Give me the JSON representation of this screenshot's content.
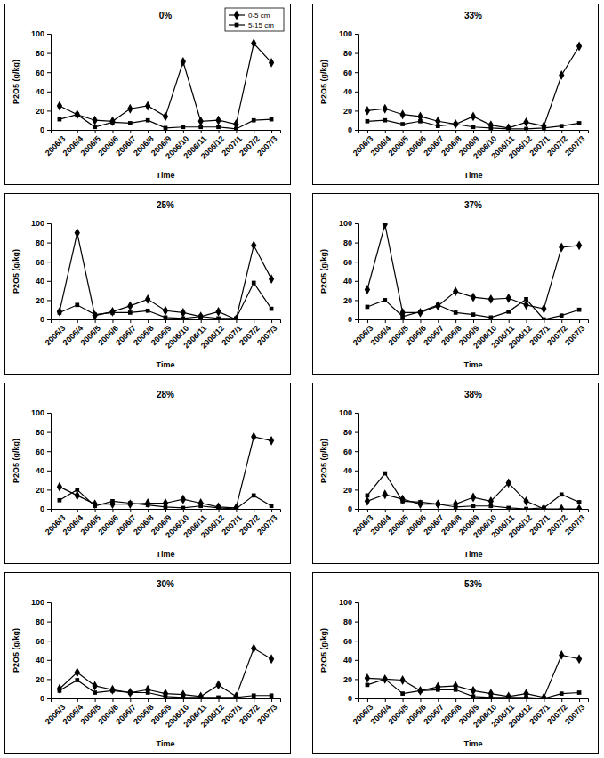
{
  "chart_data": [
    {
      "type": "line",
      "title": "0%",
      "x_label": "Time",
      "y_label": "P2O5 (g/kg)",
      "legend": "upper right",
      "categories": [
        "2006/3",
        "2006/4",
        "2006/5",
        "2006/6",
        "2006/7",
        "2006/8",
        "2006/9",
        "2006/10",
        "2006/11",
        "2006/12",
        "2007/1",
        "2007/2",
        "2007/3"
      ],
      "ylim": [
        0,
        100
      ],
      "yticks": [
        0,
        20,
        40,
        60,
        80,
        100
      ],
      "series": [
        {
          "name": "0-5 cm",
          "color": "#000000",
          "marker": "diamond",
          "values": [
            25,
            16,
            10,
            9,
            22,
            25,
            14,
            71,
            9,
            10,
            6,
            90,
            70
          ]
        },
        {
          "name": "5-15 cm",
          "color": "#000000",
          "marker": "square",
          "values": [
            11,
            16,
            3,
            8,
            7,
            10,
            2,
            3,
            3,
            3,
            1,
            10,
            11
          ]
        }
      ]
    },
    {
      "type": "line",
      "title": "25%",
      "x_label": "Time",
      "y_label": "P2O5 (g/kg)",
      "categories": [
        "2006/3",
        "2006/4",
        "2006/5",
        "2006/6",
        "2006/7",
        "2006/8",
        "2006/9",
        "2006/10",
        "2006/11",
        "2006/12",
        "2007/1",
        "2007/2",
        "2007/3"
      ],
      "ylim": [
        0,
        100
      ],
      "yticks": [
        0,
        20,
        40,
        60,
        80,
        100
      ],
      "series": [
        {
          "color": "#000000",
          "marker": "diamond",
          "values": [
            8,
            90,
            4,
            8,
            14,
            21,
            9,
            7,
            3,
            8,
            0,
            77,
            42
          ]
        },
        {
          "color": "#000000",
          "marker": "square",
          "values": [
            7,
            15,
            5,
            7,
            7,
            9,
            2,
            1,
            3,
            1,
            1,
            38,
            11
          ]
        }
      ]
    },
    {
      "type": "line",
      "title": "28%",
      "x_label": "Time",
      "y_label": "P2O5 (g/kg)",
      "categories": [
        "2006/3",
        "2006/4",
        "2006/5",
        "2006/6",
        "2006/7",
        "2006/8",
        "2006/9",
        "2006/10",
        "2006/11",
        "2006/12",
        "2007/1",
        "2007/2",
        "2007/3"
      ],
      "ylim": [
        0,
        100
      ],
      "yticks": [
        0,
        20,
        40,
        60,
        80,
        100
      ],
      "series": [
        {
          "color": "#000000",
          "marker": "diamond",
          "values": [
            23,
            14,
            5,
            5,
            5,
            6,
            6,
            10,
            6,
            2,
            1,
            75,
            71
          ]
        },
        {
          "color": "#000000",
          "marker": "square",
          "values": [
            9,
            20,
            3,
            8,
            6,
            4,
            2,
            1,
            3,
            1,
            0,
            14,
            3
          ]
        }
      ]
    },
    {
      "type": "line",
      "title": "30%",
      "x_label": "Time",
      "y_label": "P2O5 (g/kg)",
      "categories": [
        "2006/3",
        "2006/4",
        "2006/5",
        "2006/6",
        "2006/7",
        "2006/8",
        "2006/9",
        "2006/10",
        "2006/11",
        "2006/12",
        "2007/1",
        "2007/2",
        "2007/3"
      ],
      "ylim": [
        0,
        100
      ],
      "yticks": [
        0,
        20,
        40,
        60,
        80,
        100
      ],
      "series": [
        {
          "color": "#000000",
          "marker": "diamond",
          "values": [
            10,
            27,
            13,
            9,
            6,
            9,
            5,
            4,
            2,
            14,
            2,
            52,
            41
          ]
        },
        {
          "color": "#000000",
          "marker": "square",
          "values": [
            8,
            19,
            6,
            8,
            6,
            6,
            2,
            1,
            1,
            1,
            1,
            3,
            3
          ]
        }
      ]
    },
    {
      "type": "line",
      "title": "33%",
      "x_label": "Time",
      "y_label": "P2O5 (g/kg)",
      "categories": [
        "2006/3",
        "2006/4",
        "2006/5",
        "2006/6",
        "2006/7",
        "2006/8",
        "2006/9",
        "2006/10",
        "2006/11",
        "2006/12",
        "2007/1",
        "2007/2",
        "2007/3"
      ],
      "ylim": [
        0,
        100
      ],
      "yticks": [
        0,
        20,
        40,
        60,
        80,
        100
      ],
      "series": [
        {
          "color": "#000000",
          "marker": "diamond",
          "values": [
            20,
            22,
            16,
            14,
            9,
            6,
            14,
            5,
            2,
            8,
            4,
            57,
            87
          ]
        },
        {
          "color": "#000000",
          "marker": "square",
          "values": [
            9,
            10,
            6,
            9,
            4,
            6,
            3,
            2,
            1,
            1,
            2,
            4,
            7
          ]
        }
      ]
    },
    {
      "type": "line",
      "title": "37%",
      "x_label": "Time",
      "y_label": "P2O5 (g/kg)",
      "categories": [
        "2006/3",
        "2006/4",
        "2006/5",
        "2006/6",
        "2006/7",
        "2006/8",
        "2006/9",
        "2006/10",
        "2006/11",
        "2006/12",
        "2007/1",
        "2007/2",
        "2007/3"
      ],
      "ylim": [
        0,
        100
      ],
      "yticks": [
        0,
        20,
        40,
        60,
        80,
        100
      ],
      "series": [
        {
          "color": "#000000",
          "marker": "diamond",
          "values": [
            31,
            99,
            7,
            7,
            14,
            29,
            23,
            21,
            22,
            15,
            11,
            75,
            77
          ]
        },
        {
          "color": "#000000",
          "marker": "square",
          "values": [
            13,
            20,
            3,
            8,
            15,
            7,
            5,
            2,
            8,
            21,
            0,
            4,
            10
          ]
        }
      ]
    },
    {
      "type": "line",
      "title": "38%",
      "x_label": "Time",
      "y_label": "P2O5 (g/kg)",
      "categories": [
        "2006/3",
        "2006/4",
        "2006/5",
        "2006/6",
        "2006/7",
        "2006/8",
        "2006/9",
        "2006/10",
        "2006/11",
        "2006/12",
        "2007/1",
        "2007/2",
        "2007/3"
      ],
      "ylim": [
        0,
        100
      ],
      "yticks": [
        0,
        20,
        40,
        60,
        80,
        100
      ],
      "series": [
        {
          "color": "#000000",
          "marker": "diamond",
          "values": [
            8,
            15,
            10,
            5,
            5,
            5,
            12,
            8,
            27,
            8,
            0,
            0,
            0
          ]
        },
        {
          "color": "#000000",
          "marker": "square",
          "values": [
            14,
            37,
            8,
            7,
            5,
            2,
            3,
            3,
            1,
            0,
            1,
            15,
            7
          ]
        }
      ]
    },
    {
      "type": "line",
      "title": "53%",
      "x_label": "Time",
      "y_label": "P2O5 (g/kg)",
      "categories": [
        "2006/3",
        "2006/4",
        "2006/5",
        "2006/6",
        "2006/7",
        "2006/8",
        "2006/9",
        "2006/10",
        "2006/11",
        "2006/12",
        "2007/1",
        "2007/2",
        "2007/3"
      ],
      "ylim": [
        0,
        100
      ],
      "yticks": [
        0,
        20,
        40,
        60,
        80,
        100
      ],
      "series": [
        {
          "color": "#000000",
          "marker": "diamond",
          "values": [
            21,
            20,
            19,
            8,
            12,
            13,
            8,
            5,
            2,
            5,
            1,
            45,
            41
          ]
        },
        {
          "color": "#000000",
          "marker": "square",
          "values": [
            14,
            20,
            5,
            8,
            9,
            9,
            2,
            1,
            1,
            1,
            0,
            5,
            6
          ]
        }
      ]
    }
  ]
}
